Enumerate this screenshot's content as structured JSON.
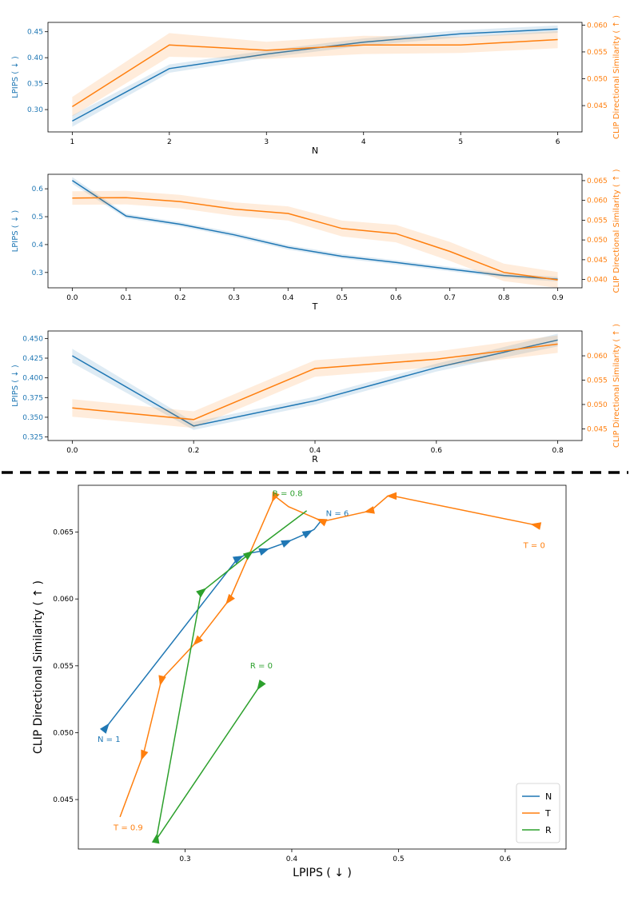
{
  "colors": {
    "lpips": "#1f77b4",
    "clip": "#ff7f0e",
    "N": "#1f77b4",
    "T": "#ff7f0e",
    "R": "#2ca02c",
    "divider": "#000000"
  },
  "chart_data": [
    {
      "type": "line",
      "xlabel": "N",
      "ylabel_left": "LPIPS ( ↓ )",
      "ylabel_right": "CLIP Directional Similarity ( ↑ )",
      "x": [
        1,
        2,
        3,
        4,
        5,
        6
      ],
      "xticks": [
        "1",
        "2",
        "3",
        "4",
        "5",
        "6"
      ],
      "xlim": [
        0.75,
        6.25
      ],
      "ylim_left": [
        0.257,
        0.468
      ],
      "ylim_right": [
        0.0401,
        0.0605
      ],
      "yticks_left": [
        "0.30",
        "0.35",
        "0.40",
        "0.45"
      ],
      "yticks_right": [
        "0.045",
        "0.050",
        "0.055",
        "0.060"
      ],
      "series": [
        {
          "axis": "left",
          "values": [
            0.278,
            0.379,
            0.407,
            0.43,
            0.446,
            0.455
          ],
          "band": [
            0.011,
            0.008,
            0.007,
            0.007,
            0.007,
            0.007
          ]
        },
        {
          "axis": "right",
          "values": [
            0.0448,
            0.0563,
            0.0553,
            0.0563,
            0.0563,
            0.0573
          ],
          "band": [
            0.0018,
            0.0022,
            0.0016,
            0.0017,
            0.0015,
            0.0016
          ]
        }
      ]
    },
    {
      "type": "line",
      "xlabel": "T",
      "ylabel_left": "LPIPS ( ↓ )",
      "ylabel_right": "CLIP Directional Similarity ( ↑ )",
      "x": [
        0.0,
        0.1,
        0.2,
        0.3,
        0.4,
        0.5,
        0.6,
        0.7,
        0.8,
        0.9
      ],
      "xticks": [
        "0.0",
        "0.1",
        "0.2",
        "0.3",
        "0.4",
        "0.5",
        "0.6",
        "0.7",
        "0.8",
        "0.9"
      ],
      "xlim": [
        -0.045,
        0.945
      ],
      "ylim_left": [
        0.245,
        0.652
      ],
      "ylim_right": [
        0.0379,
        0.0666
      ],
      "yticks_left": [
        "0.3",
        "0.4",
        "0.5",
        "0.6"
      ],
      "yticks_right": [
        "0.040",
        "0.045",
        "0.050",
        "0.055",
        "0.060",
        "0.065"
      ],
      "series": [
        {
          "axis": "left",
          "values": [
            0.63,
            0.502,
            0.473,
            0.435,
            0.39,
            0.358,
            0.336,
            0.312,
            0.289,
            0.276
          ],
          "band": [
            0.012,
            0.008,
            0.008,
            0.008,
            0.008,
            0.008,
            0.008,
            0.008,
            0.008,
            0.008
          ]
        },
        {
          "axis": "right",
          "values": [
            0.0606,
            0.0607,
            0.0597,
            0.0578,
            0.0567,
            0.0529,
            0.0516,
            0.0471,
            0.0418,
            0.0399
          ],
          "band": [
            0.0017,
            0.0017,
            0.0017,
            0.0017,
            0.0018,
            0.002,
            0.0022,
            0.0024,
            0.0022,
            0.002
          ]
        }
      ]
    },
    {
      "type": "line",
      "xlabel": "R",
      "ylabel_left": "LPIPS ( ↓ )",
      "ylabel_right": "CLIP Directional Similarity ( ↑ )",
      "x": [
        0.0,
        0.2,
        0.4,
        0.6,
        0.8
      ],
      "xticks": [
        "0.0",
        "0.2",
        "0.4",
        "0.6",
        "0.8"
      ],
      "xlim": [
        -0.04,
        0.84
      ],
      "ylim_left": [
        0.3205,
        0.4595
      ],
      "ylim_right": [
        0.0426,
        0.0651
      ],
      "yticks_left": [
        "0.325",
        "0.350",
        "0.375",
        "0.400",
        "0.425",
        "0.450"
      ],
      "yticks_right": [
        "0.045",
        "0.050",
        "0.055",
        "0.060"
      ],
      "series": [
        {
          "axis": "left",
          "values": [
            0.428,
            0.339,
            0.371,
            0.413,
            0.448
          ],
          "band": [
            0.009,
            0.005,
            0.005,
            0.005,
            0.008
          ]
        },
        {
          "axis": "right",
          "values": [
            0.0493,
            0.0469,
            0.0574,
            0.0593,
            0.0624
          ],
          "band": [
            0.0018,
            0.0017,
            0.0017,
            0.0016,
            0.0018
          ]
        }
      ]
    },
    {
      "type": "line",
      "xlabel": "LPIPS ( ↓ )",
      "ylabel": "CLIP Directional Similarity ( ↑ )",
      "xlim": [
        0.2,
        0.657
      ],
      "ylim": [
        0.0413,
        0.0685
      ],
      "xticks": [
        "0.3",
        "0.4",
        "0.5",
        "0.6"
      ],
      "yticks": [
        "0.045",
        "0.050",
        "0.055",
        "0.060",
        "0.065"
      ],
      "legend": "lower-right",
      "series": [
        {
          "name": "N",
          "points": [
            [
              0.225,
              0.0503
            ],
            [
              0.349,
              0.063
            ],
            [
              0.359,
              0.0634
            ],
            [
              0.373,
              0.0636
            ],
            [
              0.394,
              0.0642
            ],
            [
              0.414,
              0.0649
            ],
            [
              0.421,
              0.0652
            ],
            [
              0.428,
              0.0659
            ]
          ],
          "arrows": [
            [
              0.225,
              0.0503
            ],
            [
              0.349,
              0.063
            ],
            [
              0.373,
              0.0636
            ],
            [
              0.394,
              0.0642
            ],
            [
              0.414,
              0.0649
            ]
          ],
          "labels": [
            {
              "text": "N = 1",
              "x": 0.218,
              "y": 0.0493
            },
            {
              "text": "N = 6",
              "x": 0.432,
              "y": 0.0662
            }
          ]
        },
        {
          "name": "T",
          "points": [
            [
              0.63,
              0.0655
            ],
            [
              0.495,
              0.0677
            ],
            [
              0.49,
              0.0677
            ],
            [
              0.474,
              0.0666
            ],
            [
              0.429,
              0.0658
            ],
            [
              0.397,
              0.0669
            ],
            [
              0.384,
              0.0677
            ],
            [
              0.342,
              0.06
            ],
            [
              0.312,
              0.0569
            ],
            [
              0.278,
              0.054
            ],
            [
              0.261,
              0.0484
            ],
            [
              0.239,
              0.0437
            ]
          ],
          "arrows": [
            [
              0.63,
              0.0655
            ],
            [
              0.495,
              0.0677
            ],
            [
              0.474,
              0.0666
            ],
            [
              0.429,
              0.0658
            ],
            [
              0.384,
              0.0677
            ],
            [
              0.342,
              0.06
            ],
            [
              0.312,
              0.0569
            ],
            [
              0.278,
              0.054
            ],
            [
              0.261,
              0.0484
            ],
            [
              0.239,
              0.0437
            ]
          ],
          "labels": [
            {
              "text": "T = 0",
              "x": 0.617,
              "y": 0.0638
            },
            {
              "text": "T = 0.9",
              "x": 0.233,
              "y": 0.0427
            }
          ]
        },
        {
          "name": "R",
          "points": [
            [
              0.371,
              0.0536
            ],
            [
              0.273,
              0.042
            ],
            [
              0.315,
              0.0605
            ],
            [
              0.359,
              0.0633
            ],
            [
              0.414,
              0.0666
            ]
          ],
          "arrows": [
            [
              0.371,
              0.0536
            ],
            [
              0.273,
              0.042
            ],
            [
              0.315,
              0.0605
            ],
            [
              0.359,
              0.0633
            ],
            [
              0.414,
              0.0666
            ]
          ],
          "labels": [
            {
              "text": "R = 0",
              "x": 0.361,
              "y": 0.0548
            },
            {
              "text": "R = 0.8",
              "x": 0.382,
              "y": 0.0677
            }
          ]
        }
      ]
    }
  ]
}
